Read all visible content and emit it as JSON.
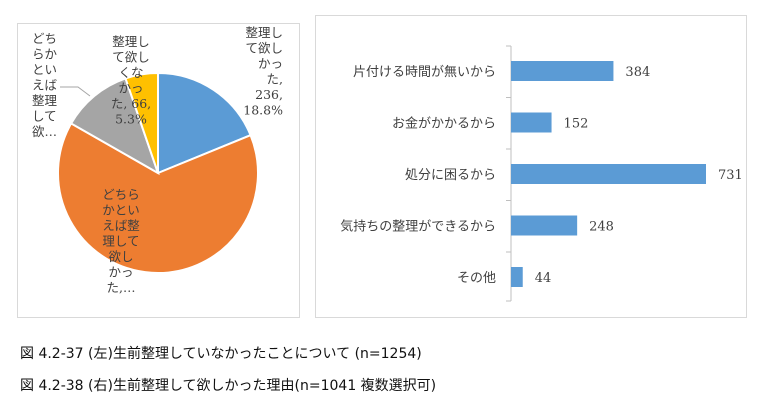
{
  "chart_data": [
    {
      "type": "pie",
      "title": "",
      "slices": [
        {
          "name": "整理して欲しかった",
          "value": 236,
          "percent": 18.8,
          "color": "#5b9bd5",
          "label": [
            "整理し",
            "て欲し",
            "かっ",
            "た,",
            "236,",
            "18.8%"
          ]
        },
        {
          "name": "どちらかといえば整理して欲しかった",
          "value": 808,
          "percent": 64.4,
          "color": "#ed7d31",
          "label": [
            "どちら",
            "かとい",
            "えば整",
            "理して",
            "欲し",
            "かっ",
            "た,…"
          ]
        },
        {
          "name": "どちらかといえば整理して欲しくなかった",
          "value": 144,
          "percent": 11.5,
          "color": "#a5a5a5",
          "label": [
            "どち",
            "らか",
            "とい",
            "えば",
            "整理",
            "して",
            "欲…"
          ]
        },
        {
          "name": "整理して欲しくなかった",
          "value": 66,
          "percent": 5.3,
          "color": "#ffc000",
          "label": [
            "整理し",
            "て欲し",
            "くな",
            "かっ",
            "た, 66,",
            "5.3%"
          ]
        }
      ]
    },
    {
      "type": "bar",
      "orientation": "horizontal",
      "title": "",
      "color": "#5b9bd5",
      "categories": [
        "片付ける時間が無いから",
        "お金がかかるから",
        "処分に困るから",
        "気持ちの整理ができるから",
        "その他"
      ],
      "values": [
        384,
        152,
        731,
        248,
        44
      ],
      "xlim": [
        0,
        731
      ]
    }
  ],
  "captions": [
    "図 4.2-37 (左)生前整理していなかったことについて (n=1254)",
    "図 4.2-38 (右)生前整理して欲しかった理由(n=1041 複数選択可)"
  ]
}
